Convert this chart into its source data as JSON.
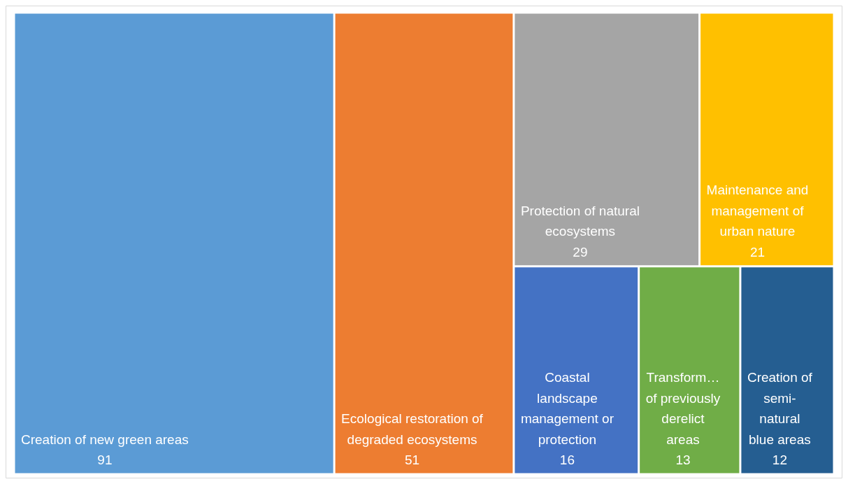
{
  "chart_data": {
    "type": "other",
    "categories": [
      "Creation of new green areas",
      "Ecological restoration of\ndegraded ecosystems",
      "Protection of natural\necosystems",
      "Maintenance and\nmanagement of\nurban nature",
      "Coastal\nlandscape\nmanagement or\nprotection",
      "Transform…\nof previously\nderelict\nareas",
      "Creation of\nsemi-\nnatural\nblue areas"
    ],
    "values": [
      91,
      51,
      29,
      21,
      16,
      13,
      12
    ],
    "colors": [
      "#5b9bd5",
      "#ed7d31",
      "#a5a5a5",
      "#ffc000",
      "#4472c4",
      "#70ad47",
      "#255e91"
    ],
    "data_labels": true
  }
}
